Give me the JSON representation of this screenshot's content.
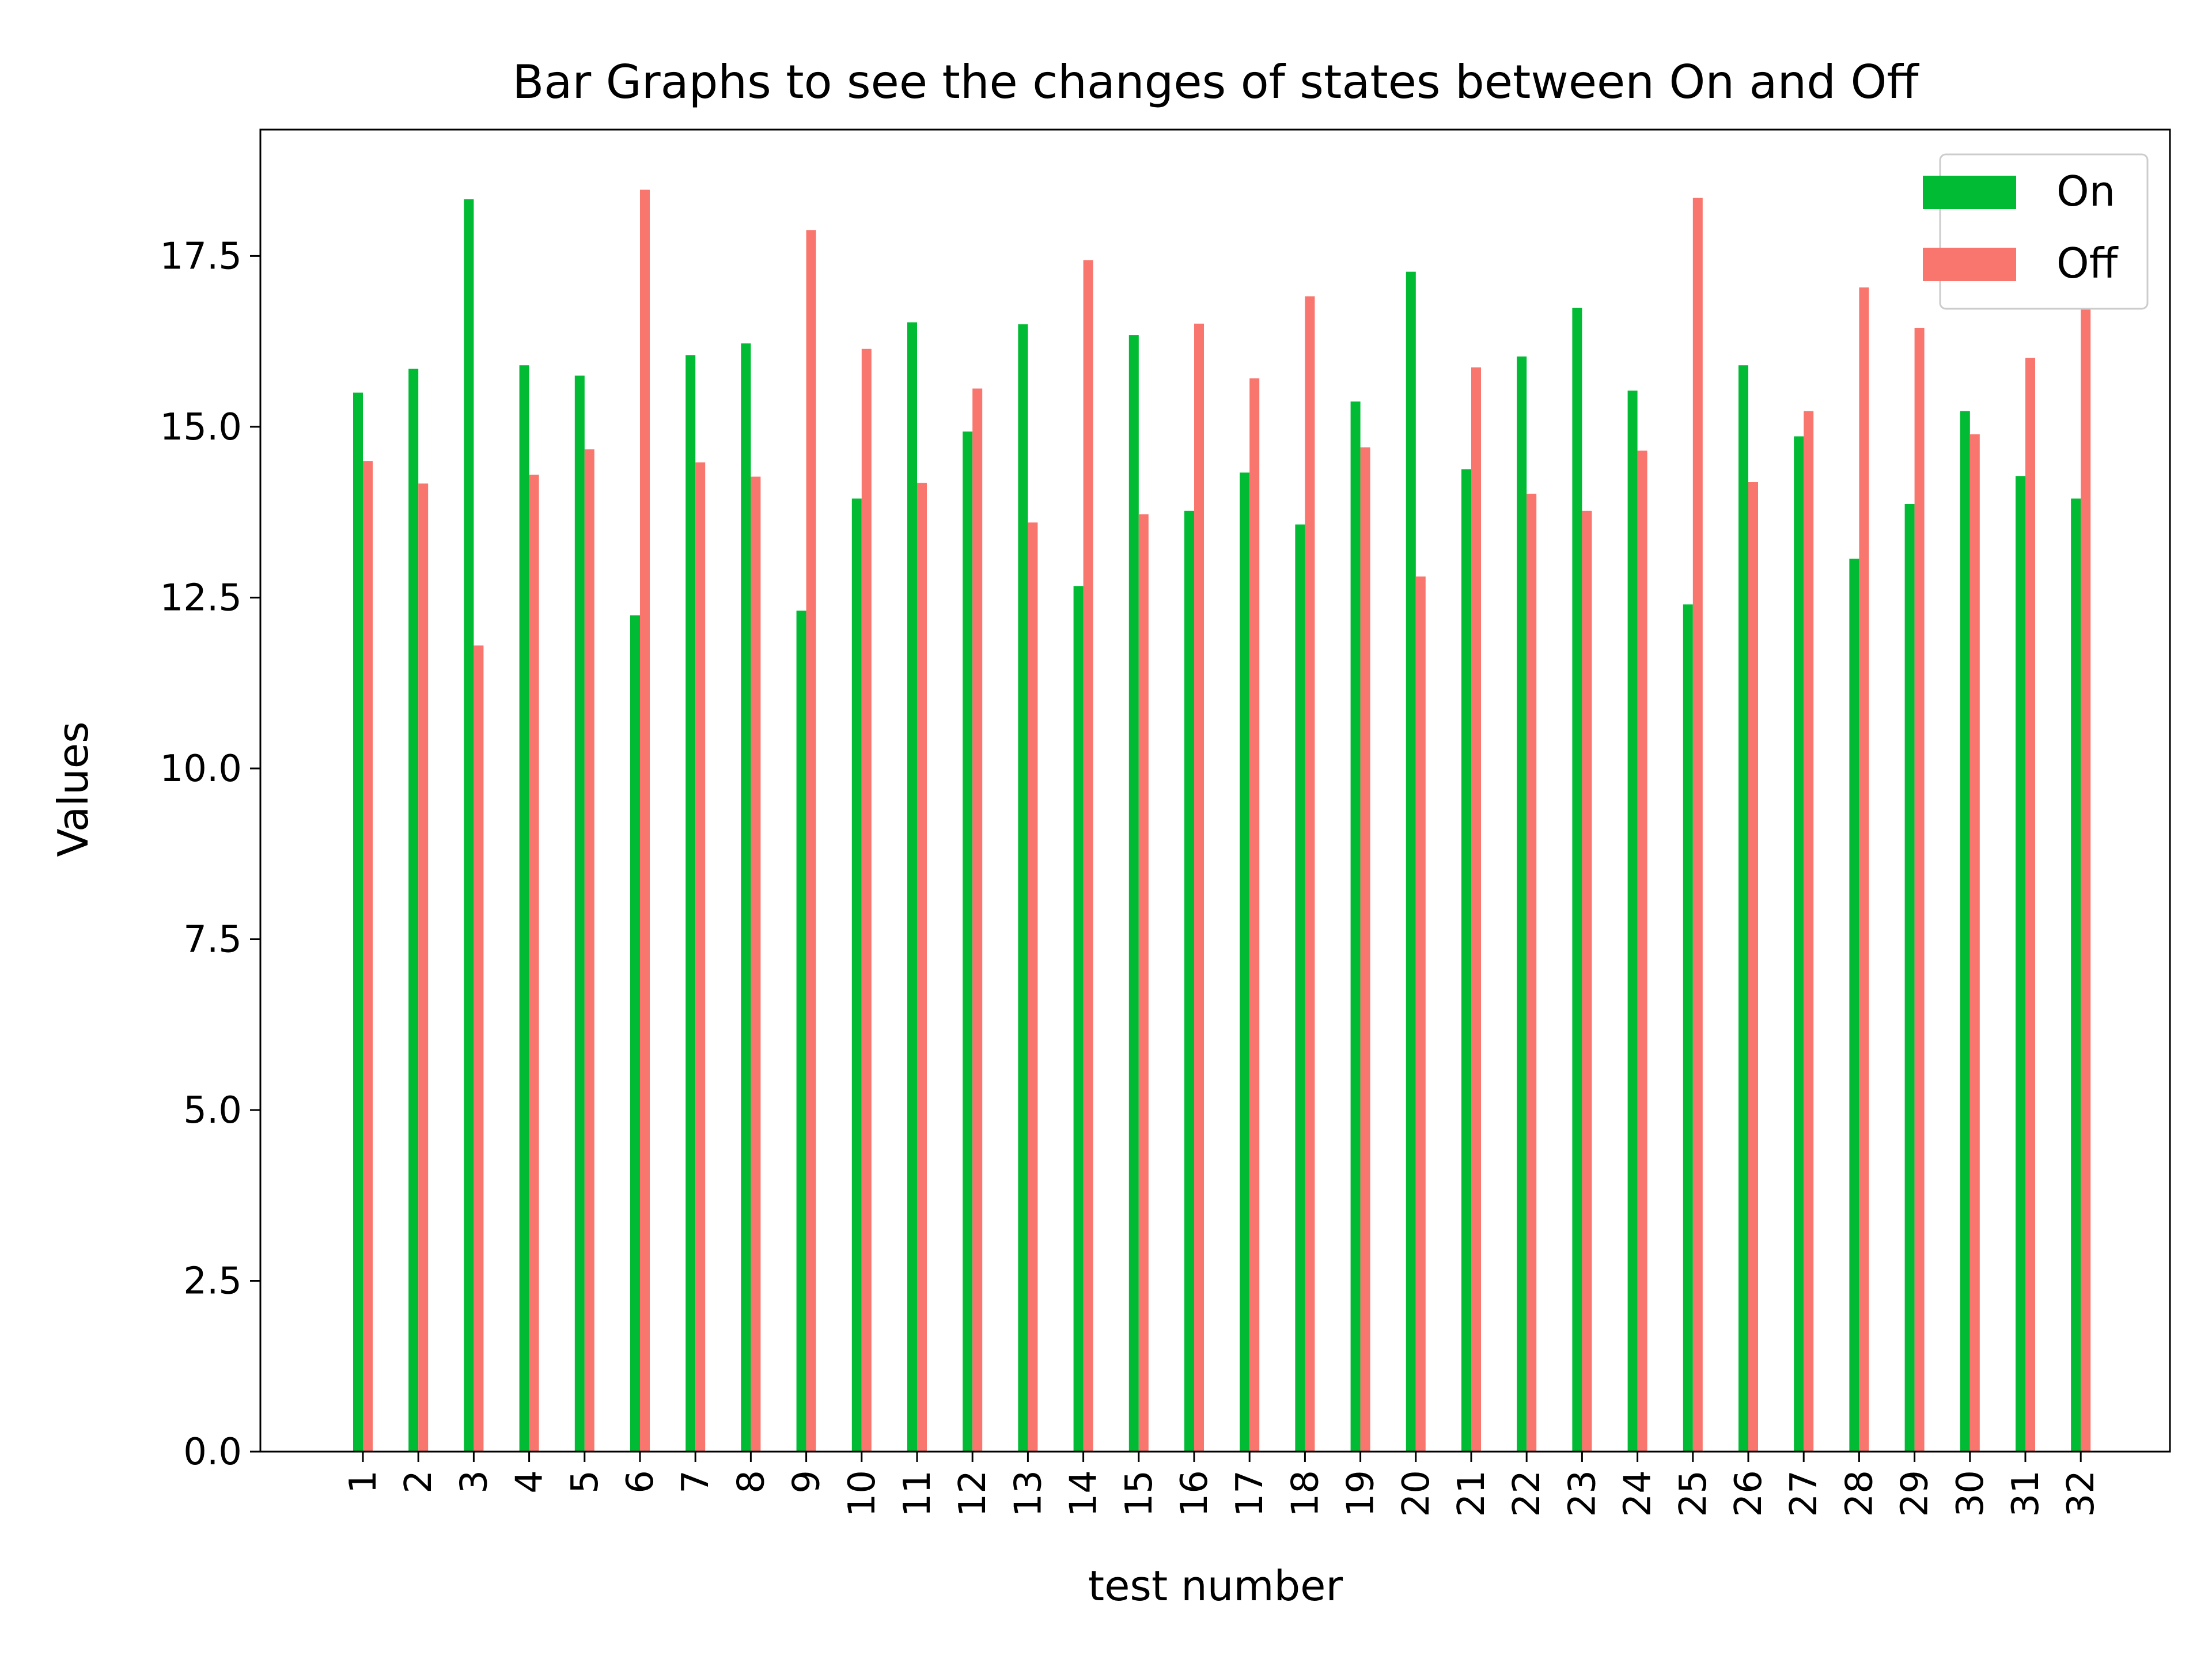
{
  "chart_data": {
    "type": "bar",
    "title": "Bar Graphs to see the changes of states between On and Off",
    "xlabel": "test number",
    "ylabel": "Values",
    "ylim": [
      0,
      19.35
    ],
    "yticks": [
      "0.0",
      "2.5",
      "5.0",
      "7.5",
      "10.0",
      "12.5",
      "15.0",
      "17.5"
    ],
    "ytick_values": [
      0,
      2.5,
      5,
      7.5,
      10,
      12.5,
      15,
      17.5
    ],
    "categories": [
      "1",
      "2",
      "3",
      "4",
      "5",
      "6",
      "7",
      "8",
      "9",
      "10",
      "11",
      "12",
      "13",
      "14",
      "15",
      "16",
      "17",
      "18",
      "19",
      "20",
      "21",
      "22",
      "23",
      "24",
      "25",
      "26",
      "27",
      "28",
      "29",
      "30",
      "31",
      "32"
    ],
    "series": [
      {
        "name": "On",
        "color": "#00bb33",
        "values": [
          15.5,
          15.85,
          18.33,
          15.9,
          15.75,
          12.24,
          16.05,
          16.22,
          12.31,
          13.95,
          16.53,
          14.93,
          16.5,
          12.67,
          16.34,
          13.77,
          14.33,
          13.57,
          15.37,
          17.27,
          14.38,
          16.03,
          16.74,
          15.53,
          12.4,
          15.9,
          14.86,
          13.07,
          13.87,
          15.23,
          14.28,
          13.95
        ]
      },
      {
        "name": "Off",
        "color": "#f8766d",
        "values": [
          14.5,
          14.17,
          11.8,
          14.3,
          14.67,
          18.47,
          14.48,
          14.27,
          17.88,
          16.14,
          14.18,
          15.56,
          13.6,
          17.44,
          13.72,
          16.51,
          15.71,
          16.91,
          14.7,
          12.81,
          15.87,
          14.02,
          13.77,
          14.65,
          18.35,
          14.19,
          15.23,
          17.04,
          16.45,
          14.89,
          16.01,
          16.74
        ]
      }
    ],
    "legend_position": "top-right",
    "grid": false
  }
}
